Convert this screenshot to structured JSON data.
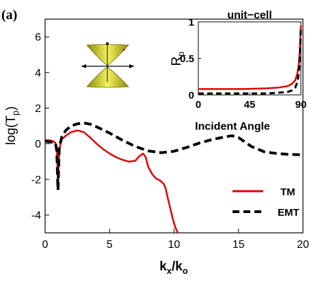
{
  "panel_label": "(a)",
  "colors": {
    "tm": "#e00000",
    "emt": "#000000",
    "cone": "#e8e63a",
    "background": "#ffffff"
  },
  "chart_data": [
    {
      "type": "line",
      "xlabel": {
        "base": "k",
        "sub1": "x",
        "mid": "/k",
        "sub2": "o"
      },
      "ylabel": {
        "base": "log(T",
        "sub": "p",
        "close": ")"
      },
      "xlim": [
        0,
        20
      ],
      "ylim": [
        -5,
        7
      ],
      "xticks": [
        0,
        5,
        10,
        15,
        20
      ],
      "yticks": [
        -4,
        -2,
        0,
        2,
        4,
        6
      ],
      "grid": false,
      "legend_position": "bottom-right",
      "legend": [
        "TM",
        "EMT"
      ],
      "series": [
        {
          "name": "TM",
          "style": "solid",
          "x": [
            0,
            0.3,
            0.6,
            0.8,
            0.9,
            0.95,
            1.0,
            1.05,
            1.1,
            1.3,
            1.6,
            2.0,
            2.5,
            3.0,
            3.5,
            4.0,
            4.5,
            5.0,
            5.5,
            6.0,
            6.5,
            7.0,
            7.3,
            7.6,
            7.8,
            8.0,
            8.3,
            8.6,
            8.9,
            9.2,
            9.35,
            9.5,
            9.7,
            9.9,
            10.1,
            10.3
          ],
          "y": [
            0.2,
            0.2,
            0.15,
            0.05,
            -0.2,
            -1.2,
            -2.2,
            -1.2,
            -0.3,
            0.25,
            0.45,
            0.65,
            0.75,
            0.65,
            0.35,
            0.0,
            -0.3,
            -0.55,
            -0.75,
            -0.9,
            -1.0,
            -0.95,
            -0.7,
            -0.55,
            -0.75,
            -1.3,
            -1.7,
            -1.95,
            -2.05,
            -2.25,
            -2.5,
            -3.0,
            -3.6,
            -4.2,
            -4.7,
            -5.0
          ]
        },
        {
          "name": "EMT",
          "style": "dashed",
          "x": [
            0,
            0.4,
            0.8,
            0.9,
            0.95,
            1.0,
            1.05,
            1.1,
            1.3,
            1.6,
            2.0,
            2.5,
            3.0,
            3.5,
            4.0,
            5.0,
            6.0,
            7.0,
            8.0,
            9.0,
            10.0,
            11.0,
            12.0,
            13.0,
            14.0,
            14.5,
            15.0,
            15.5,
            16.0,
            17.0,
            18.0,
            19.0,
            20.0
          ],
          "y": [
            0.15,
            0.1,
            0.05,
            -0.4,
            -1.5,
            -2.6,
            -1.3,
            -0.2,
            0.4,
            0.75,
            1.0,
            1.12,
            1.17,
            1.1,
            0.95,
            0.6,
            0.2,
            -0.15,
            -0.4,
            -0.5,
            -0.42,
            -0.2,
            0.05,
            0.25,
            0.4,
            0.45,
            0.35,
            0.1,
            -0.15,
            -0.45,
            -0.55,
            -0.6,
            -0.62
          ]
        }
      ]
    },
    {
      "type": "line",
      "title": "unit−cell",
      "xlabel": "Incident Angle",
      "ylabel": {
        "base": "R",
        "sub": "p"
      },
      "xlim": [
        0,
        90
      ],
      "ylim": [
        0,
        1
      ],
      "xticks": [
        0,
        45,
        90
      ],
      "yticks": [
        0,
        0.5,
        1
      ],
      "ytick_labels": [
        "0",
        "0.5",
        "1"
      ],
      "grid": false,
      "series": [
        {
          "name": "TM",
          "style": "solid",
          "x": [
            0,
            20,
            40,
            60,
            70,
            78,
            82,
            85,
            87,
            88,
            89,
            89.5,
            90
          ],
          "y": [
            0.08,
            0.08,
            0.08,
            0.09,
            0.1,
            0.12,
            0.15,
            0.2,
            0.3,
            0.4,
            0.6,
            0.8,
            0.95
          ]
        },
        {
          "name": "EMT",
          "style": "dashed",
          "x": [
            0,
            20,
            40,
            60,
            70,
            78,
            82,
            85,
            87,
            88,
            89,
            89.5,
            90
          ],
          "y": [
            0.02,
            0.02,
            0.02,
            0.02,
            0.03,
            0.04,
            0.06,
            0.1,
            0.18,
            0.28,
            0.45,
            0.7,
            0.92
          ]
        }
      ]
    }
  ],
  "inset_cone_icon": "hyperbolic-dispersion-cone"
}
